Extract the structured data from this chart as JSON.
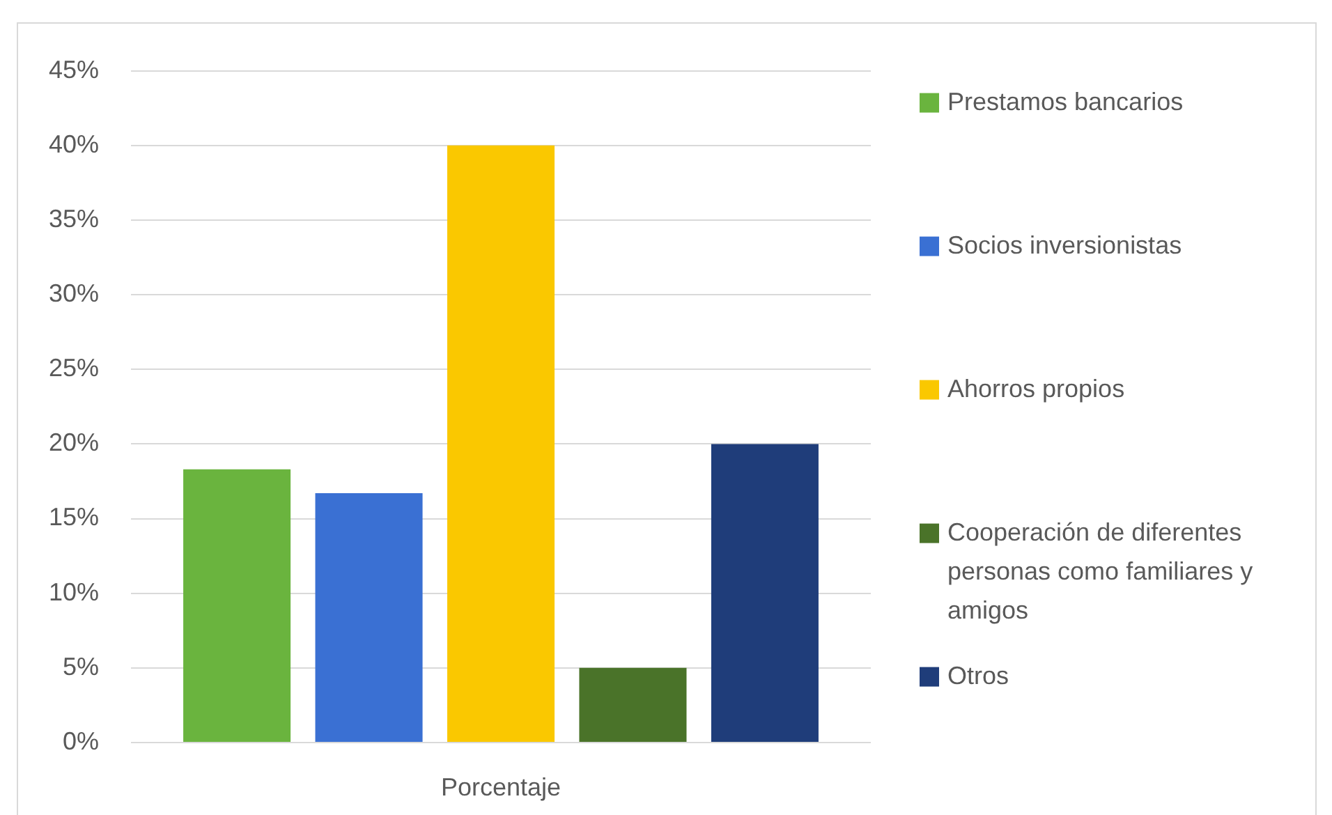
{
  "chart_data": {
    "type": "bar",
    "categories": [
      "Porcentaje"
    ],
    "series": [
      {
        "name": "Prestamos bancarios",
        "color": "#6ab43e",
        "values": [
          18.3
        ]
      },
      {
        "name": "Socios inversionistas",
        "color": "#3a70d3",
        "values": [
          16.7
        ]
      },
      {
        "name": "Ahorros propios",
        "color": "#fac800",
        "values": [
          40
        ]
      },
      {
        "name": "Cooperación de diferentes personas como familiares y amigos",
        "color": "#4a7329",
        "values": [
          5
        ]
      },
      {
        "name": "Otros",
        "color": "#1f3d7a",
        "values": [
          20
        ]
      }
    ],
    "ylim": [
      0,
      45
    ],
    "yticks": [
      {
        "value": 0,
        "label": "0%"
      },
      {
        "value": 5,
        "label": "5%"
      },
      {
        "value": 10,
        "label": "10%"
      },
      {
        "value": 15,
        "label": "15%"
      },
      {
        "value": 20,
        "label": "20%"
      },
      {
        "value": 25,
        "label": "25%"
      },
      {
        "value": 30,
        "label": "30%"
      },
      {
        "value": 35,
        "label": "35%"
      },
      {
        "value": 40,
        "label": "40%"
      },
      {
        "value": 45,
        "label": "45%"
      }
    ],
    "grid": "y",
    "legend": "right"
  }
}
